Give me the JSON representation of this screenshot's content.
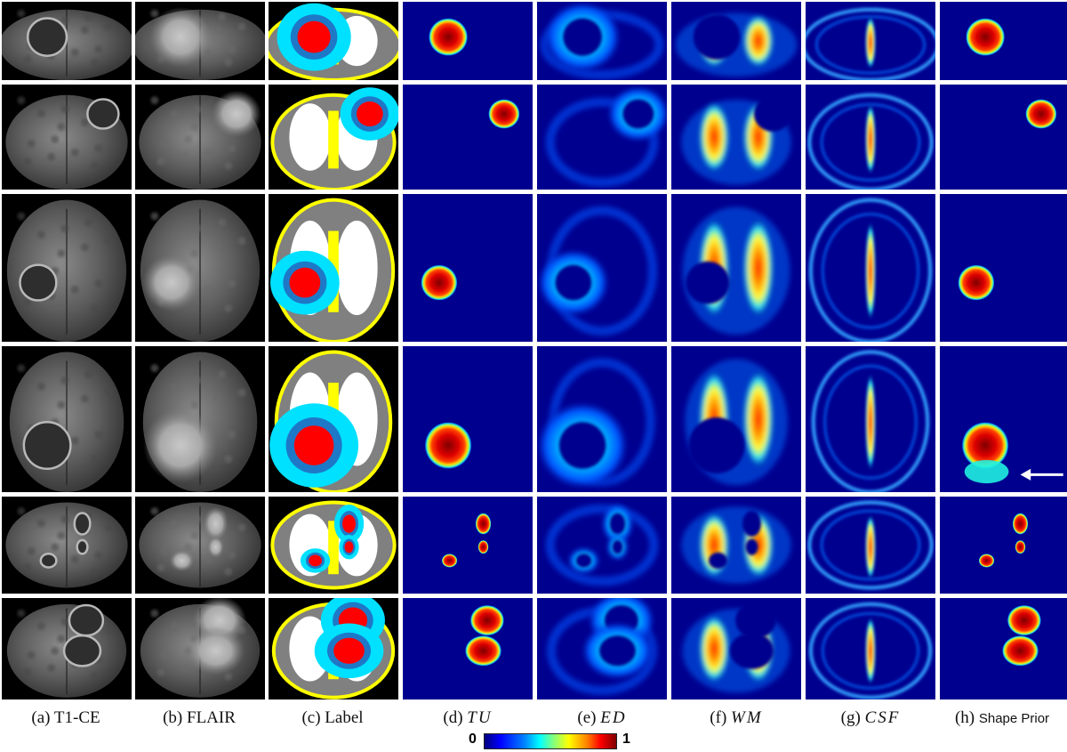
{
  "figure": {
    "columns": [
      {
        "letter": "(a)",
        "name": "T1-CE",
        "style": "plain",
        "panel": "mri"
      },
      {
        "letter": "(b)",
        "name": "FLAIR",
        "style": "plain",
        "panel": "mri"
      },
      {
        "letter": "(c)",
        "name": "Label",
        "style": "plain",
        "panel": "label"
      },
      {
        "letter": "(d)",
        "name": "TU",
        "style": "italic",
        "panel": "tu"
      },
      {
        "letter": "(e)",
        "name": "ED",
        "style": "italic",
        "panel": "ed"
      },
      {
        "letter": "(f)",
        "name": "WM",
        "style": "italic",
        "panel": "wm"
      },
      {
        "letter": "(g)",
        "name": "CSF",
        "style": "italic",
        "panel": "csf"
      },
      {
        "letter": "(h)",
        "name": "Shape Prior",
        "style": "small",
        "panel": "prior"
      }
    ],
    "rows": 6,
    "colorbar": {
      "min_label": "0",
      "max_label": "1"
    },
    "colors": {
      "heat_background": "#00008f",
      "label_background": "#000000",
      "label_gm": "#808080",
      "label_wm": "#ffffff",
      "label_csf": "#ffff00",
      "label_edema": "#00e0ff",
      "label_enhancing": "#ff0000",
      "label_necrotic": "#1e78c8",
      "arrow": "#ffffff"
    }
  }
}
